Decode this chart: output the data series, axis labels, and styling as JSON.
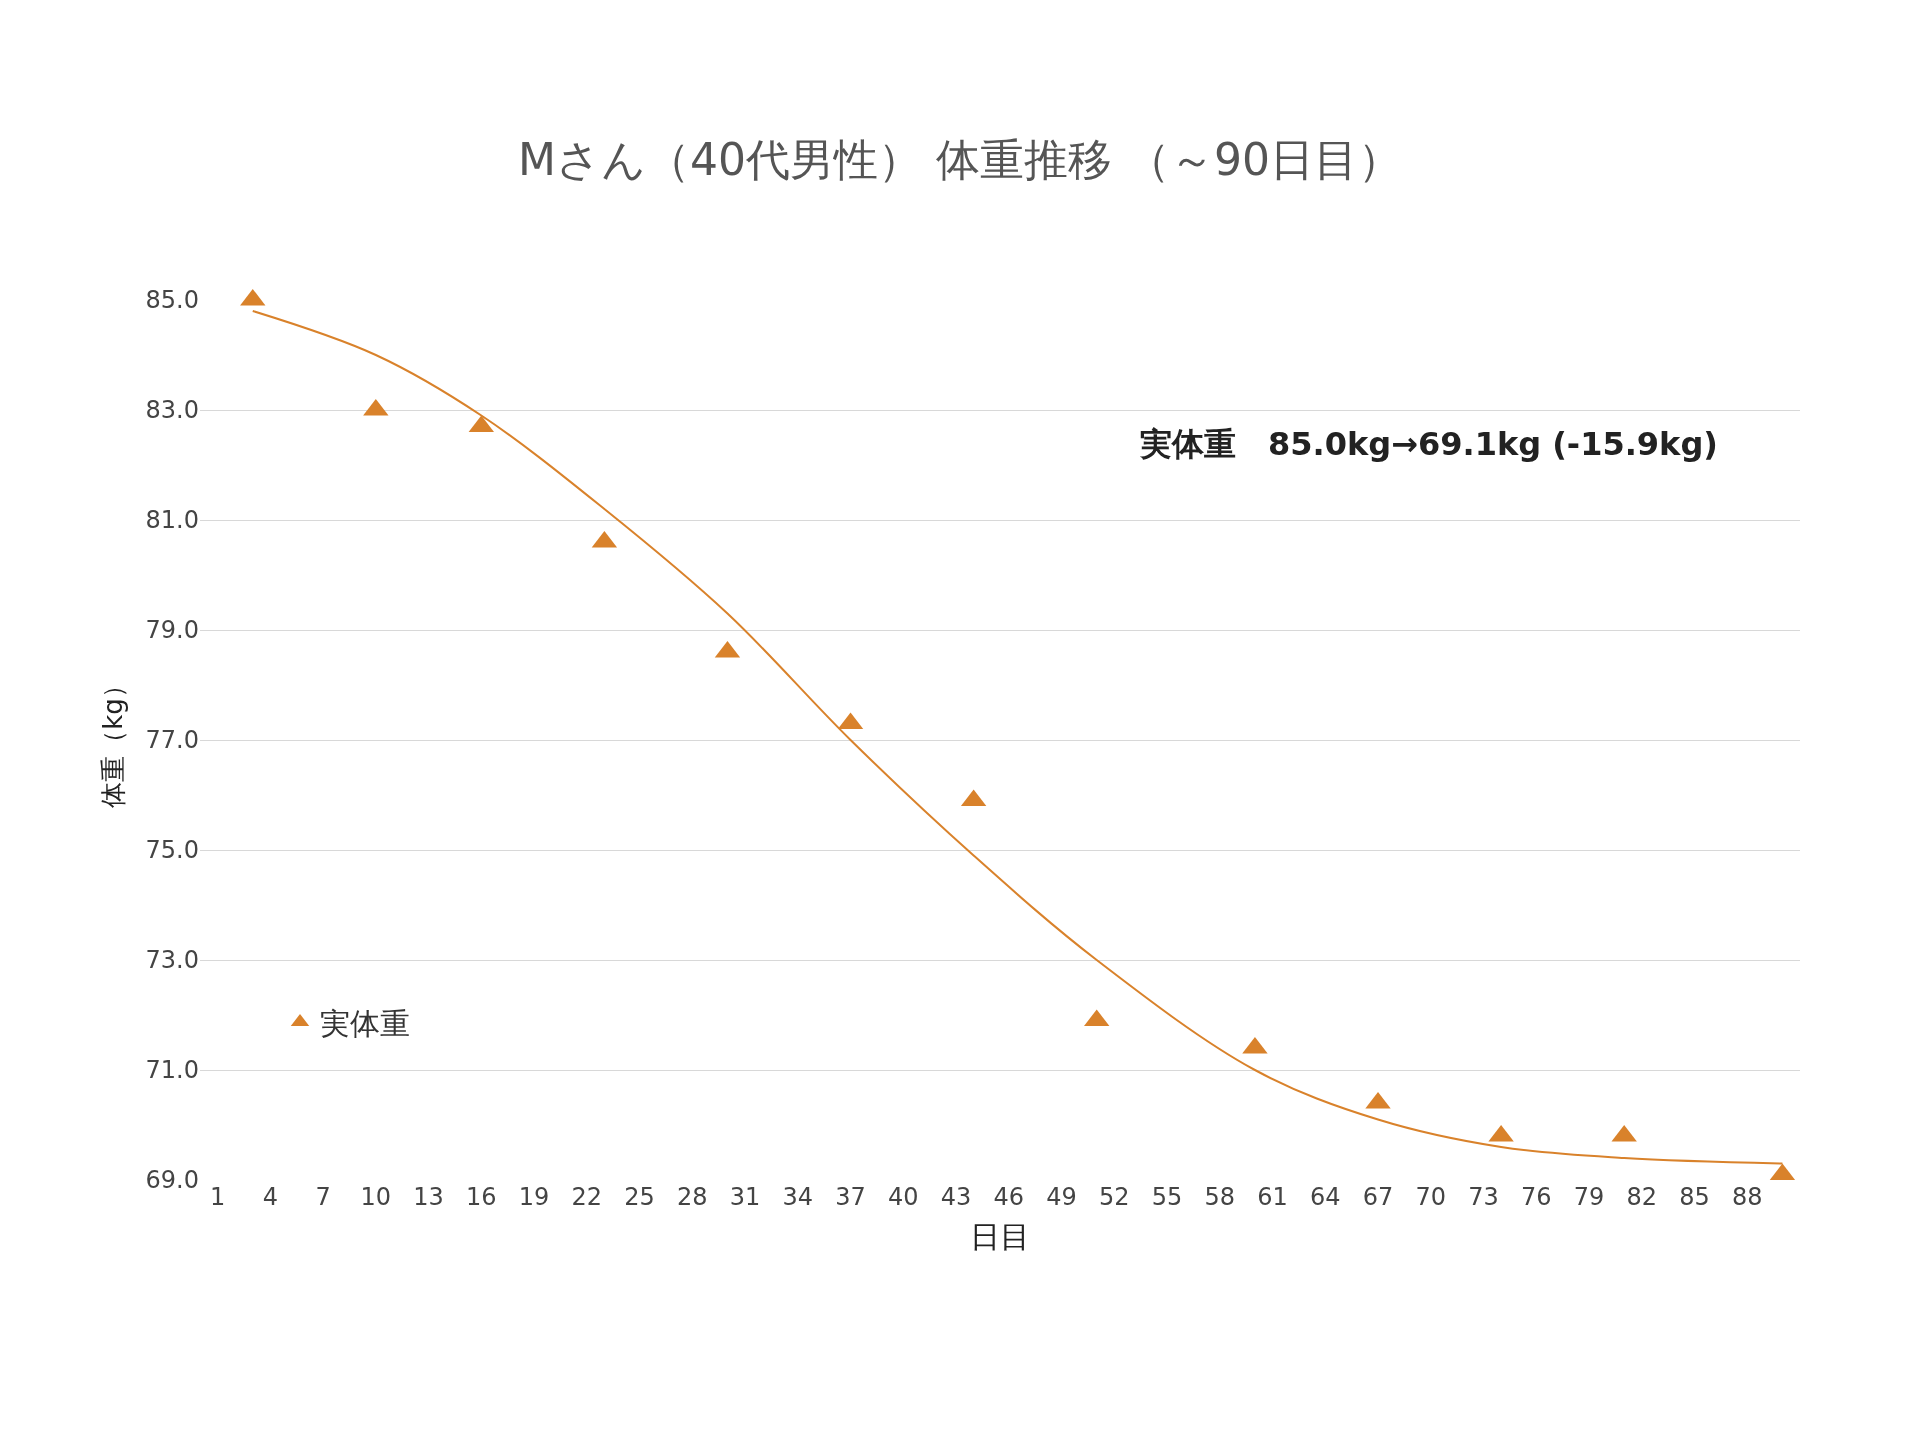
{
  "chart_data": {
    "type": "scatter",
    "title": "Mさん（40代男性） 体重推移 （～90日目）",
    "xlabel": "日目",
    "ylabel": "体重（kg）",
    "annotations": [
      "実体重　85.0kg→69.1kg (-15.9kg)"
    ],
    "x": [
      3,
      10,
      16,
      23,
      30,
      37,
      44,
      51,
      60,
      67,
      74,
      81,
      90
    ],
    "series": [
      {
        "name": "実体重",
        "color": "#d9822b",
        "marker": "triangle",
        "values": [
          85.0,
          83.0,
          82.7,
          80.6,
          78.6,
          77.3,
          75.9,
          71.9,
          71.4,
          70.4,
          69.8,
          69.8,
          69.1
        ]
      },
      {
        "type": "line",
        "color": "#d9822b",
        "marker": "none",
        "x": [
          3,
          10,
          16,
          23,
          30,
          37,
          44,
          51,
          60,
          67,
          74,
          81,
          90
        ],
        "values": [
          84.8,
          84.0,
          82.9,
          81.2,
          79.3,
          77.0,
          74.9,
          73.0,
          71.0,
          70.1,
          69.6,
          69.4,
          69.3
        ]
      }
    ],
    "xlim": [
      0,
      91
    ],
    "xticks": [
      1,
      4,
      7,
      10,
      13,
      16,
      19,
      22,
      25,
      28,
      31,
      34,
      37,
      40,
      43,
      46,
      49,
      52,
      55,
      58,
      61,
      64,
      67,
      70,
      73,
      76,
      79,
      82,
      85,
      88
    ],
    "ylim": [
      69,
      85
    ],
    "yticks": [
      {
        "value": 69,
        "label": "69.0"
      },
      {
        "value": 71,
        "label": "71.0"
      },
      {
        "value": 73,
        "label": "73.0"
      },
      {
        "value": 75,
        "label": "75.0"
      },
      {
        "value": 77,
        "label": "77.0"
      },
      {
        "value": 79,
        "label": "79.0"
      },
      {
        "value": 81,
        "label": "81.0"
      },
      {
        "value": 83,
        "label": "83.0"
      },
      {
        "value": 85,
        "label": "85.0"
      }
    ],
    "grid": "y",
    "legend": "bottom left"
  }
}
